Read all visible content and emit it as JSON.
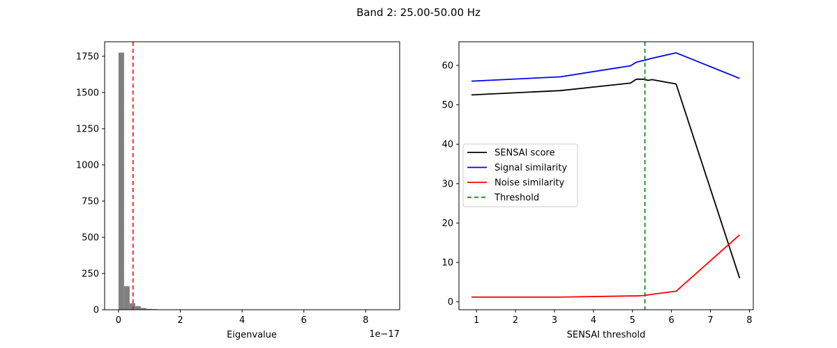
{
  "figure": {
    "title": "Band 2: 25.00-50.00 Hz"
  },
  "chart_data": [
    {
      "type": "bar",
      "xlabel": "Eigenvalue",
      "ylabel": "",
      "offset_text": "1e−17",
      "xlim": [
        -0.45,
        9.1
      ],
      "ylim": [
        0,
        1850
      ],
      "xticks": [
        0,
        2,
        4,
        6,
        8
      ],
      "yticks": [
        0,
        250,
        500,
        750,
        1000,
        1250,
        1500,
        1750
      ],
      "bar_color": "#808080",
      "bin_width": 0.18,
      "bins": [
        {
          "x0": 0.0,
          "count": 1775
        },
        {
          "x0": 0.18,
          "count": 162
        },
        {
          "x0": 0.36,
          "count": 45
        },
        {
          "x0": 0.54,
          "count": 25
        },
        {
          "x0": 0.72,
          "count": 12
        },
        {
          "x0": 0.9,
          "count": 6
        },
        {
          "x0": 1.08,
          "count": 4
        },
        {
          "x0": 1.26,
          "count": 2
        },
        {
          "x0": 1.44,
          "count": 1
        }
      ],
      "threshold": {
        "x": 0.47,
        "color": "#ff0000",
        "style": "dashed"
      }
    },
    {
      "type": "line",
      "xlabel": "SENSAI threshold",
      "ylabel": "",
      "xlim": [
        0.55,
        8.1
      ],
      "ylim": [
        -2,
        66
      ],
      "xticks": [
        1,
        2,
        3,
        4,
        5,
        6,
        7,
        8
      ],
      "yticks": [
        0,
        10,
        20,
        30,
        40,
        50,
        60
      ],
      "legend_position": "center-left",
      "series": [
        {
          "name": "SENSAI score",
          "color": "#000000",
          "style": "solid",
          "points": [
            [
              0.87,
              52.5
            ],
            [
              3.15,
              53.6
            ],
            [
              4.95,
              55.5
            ],
            [
              5.1,
              56.5
            ],
            [
              5.3,
              56.5
            ],
            [
              5.4,
              56.2
            ],
            [
              5.5,
              56.4
            ],
            [
              6.12,
              55.3
            ],
            [
              7.75,
              6.0
            ]
          ]
        },
        {
          "name": "Signal similarity",
          "color": "#0000ff",
          "style": "solid",
          "points": [
            [
              0.87,
              56.0
            ],
            [
              3.15,
              57.1
            ],
            [
              4.95,
              59.9
            ],
            [
              5.1,
              60.8
            ],
            [
              5.3,
              61.3
            ],
            [
              5.5,
              61.8
            ],
            [
              6.12,
              63.2
            ],
            [
              7.75,
              56.7
            ]
          ]
        },
        {
          "name": "Noise similarity",
          "color": "#ff0000",
          "style": "solid",
          "points": [
            [
              0.87,
              1.2
            ],
            [
              3.15,
              1.2
            ],
            [
              4.95,
              1.5
            ],
            [
              5.1,
              1.5
            ],
            [
              5.3,
              1.6
            ],
            [
              5.5,
              1.9
            ],
            [
              6.12,
              2.7
            ],
            [
              7.75,
              17.0
            ]
          ]
        }
      ],
      "threshold": {
        "name": "Threshold",
        "x": 5.32,
        "color": "#008000",
        "style": "dashed"
      }
    }
  ]
}
